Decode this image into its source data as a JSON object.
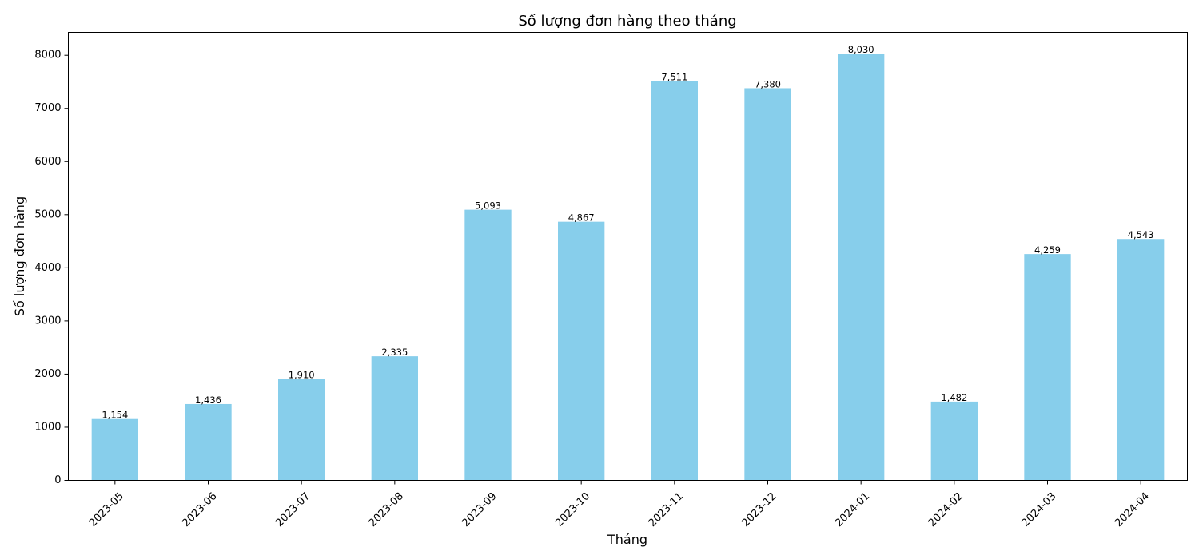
{
  "chart_data": {
    "type": "bar",
    "title": "Số lượng đơn hàng theo tháng",
    "xlabel": "Tháng",
    "ylabel": "Số lượng đơn hàng",
    "categories": [
      "2023-05",
      "2023-06",
      "2023-07",
      "2023-08",
      "2023-09",
      "2023-10",
      "2023-11",
      "2023-12",
      "2024-01",
      "2024-02",
      "2024-03",
      "2024-04"
    ],
    "values": [
      1154,
      1436,
      1910,
      2335,
      5093,
      4867,
      7511,
      7380,
      8030,
      1482,
      4259,
      4543
    ],
    "value_labels": [
      "1,154",
      "1,436",
      "1,910",
      "2,335",
      "5,093",
      "4,867",
      "7,511",
      "7,380",
      "8,030",
      "1,482",
      "4,259",
      "4,543"
    ],
    "ylim": [
      0,
      8431.5
    ],
    "yticks": [
      0,
      1000,
      2000,
      3000,
      4000,
      5000,
      6000,
      7000,
      8000
    ],
    "bar_color": "#87CEEB",
    "grid": false,
    "legend": "none"
  }
}
